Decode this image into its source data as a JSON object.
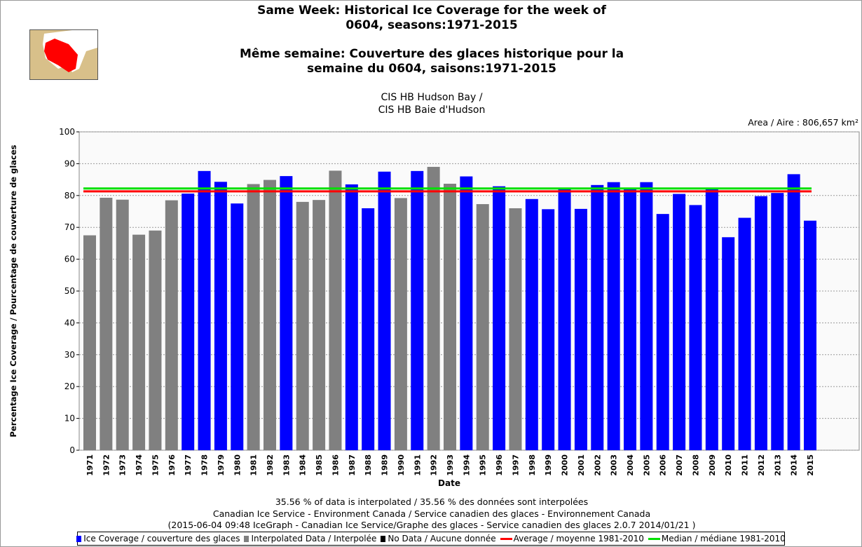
{
  "header": {
    "title_en_1": "Same Week: Historical Ice Coverage for the week of",
    "title_en_2": "0604, seasons:1971-2015",
    "title_fr_1": "Même semaine: Couverture des glaces historique pour la",
    "title_fr_2": "semaine du 0604, saisons:1971-2015",
    "region_1": "CIS HB Hudson Bay /",
    "region_2": "CIS HB Baie d'Hudson",
    "area": "Area / Aire : 806,657 km²"
  },
  "footer": {
    "line1": "35.56 % of data is interpolated / 35.56 % des données sont interpolées",
    "line2": "Canadian Ice Service - Environment Canada / Service canadien des glaces - Environnement Canada",
    "line3": "(2015-06-04 09:48 IceGraph - Canadian Ice Service/Graphe des glaces - Service canadien des glaces 2.0.7 2014/01/21 )"
  },
  "colors": {
    "coverage": "#0000ff",
    "interpolated": "#808080",
    "nodata": "#000000",
    "average": "#ff0000",
    "median": "#00e000"
  },
  "chart_data": {
    "type": "bar",
    "xlabel": "Date",
    "ylabel": "Percentage Ice Coverage / Pourcentage de couverture de glaces",
    "ylim": [
      0,
      100
    ],
    "yticks": [
      0,
      10,
      20,
      30,
      40,
      50,
      60,
      70,
      80,
      90,
      100
    ],
    "grid": true,
    "legend_placement": "bottom",
    "legend": [
      "Ice Coverage / couverture des glaces",
      "Interpolated Data / Interpolée",
      "No Data / Aucune donnée",
      "Average / moyenne 1981-2010",
      "Median / médiane 1981-2010"
    ],
    "categories": [
      "1971",
      "1972",
      "1973",
      "1974",
      "1975",
      "1976",
      "1977",
      "1978",
      "1979",
      "1980",
      "1981",
      "1982",
      "1983",
      "1984",
      "1985",
      "1986",
      "1987",
      "1988",
      "1989",
      "1990",
      "1991",
      "1992",
      "1993",
      "1994",
      "1995",
      "1996",
      "1997",
      "1998",
      "1999",
      "2000",
      "2001",
      "2002",
      "2003",
      "2004",
      "2005",
      "2006",
      "2007",
      "2008",
      "2009",
      "2010",
      "2011",
      "2012",
      "2013",
      "2014",
      "2015"
    ],
    "values": [
      67.5,
      79.3,
      78.7,
      67.7,
      69.0,
      78.5,
      80.6,
      87.7,
      84.3,
      77.5,
      83.6,
      84.9,
      86.1,
      78.0,
      78.6,
      87.8,
      83.5,
      76.0,
      87.5,
      79.2,
      87.7,
      89.0,
      83.7,
      86.0,
      77.3,
      82.9,
      76.0,
      78.9,
      75.7,
      82.0,
      75.8,
      83.3,
      84.2,
      82.2,
      84.2,
      74.2,
      80.5,
      77.0,
      82.0,
      66.9,
      73.0,
      79.8,
      80.8,
      86.7,
      72.1
    ],
    "interpolated": [
      true,
      true,
      true,
      true,
      true,
      true,
      false,
      false,
      false,
      false,
      true,
      true,
      false,
      true,
      true,
      true,
      false,
      false,
      false,
      true,
      false,
      true,
      true,
      false,
      true,
      false,
      true,
      false,
      false,
      false,
      false,
      false,
      false,
      false,
      false,
      false,
      false,
      false,
      false,
      false,
      false,
      false,
      false,
      false,
      false
    ],
    "average": 81.3,
    "median": 82.2
  }
}
